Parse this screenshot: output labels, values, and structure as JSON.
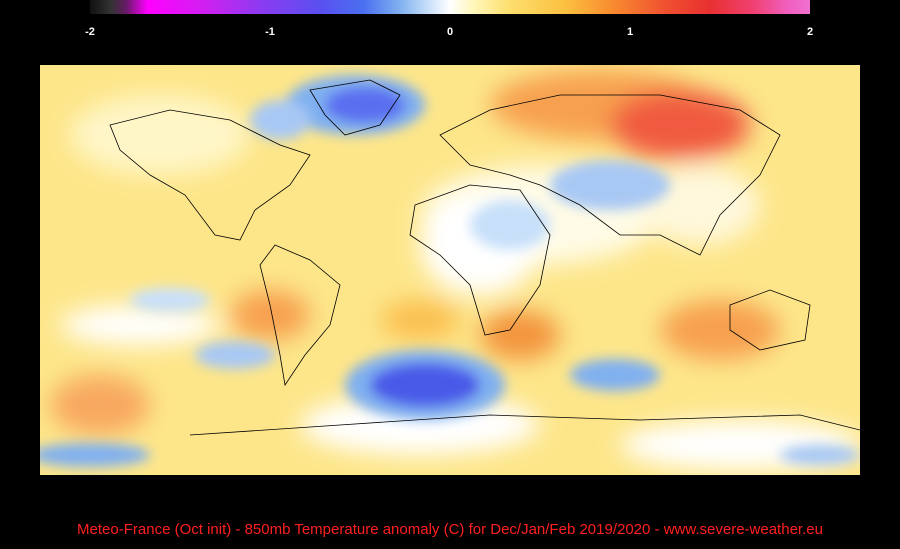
{
  "colorbar": {
    "lim": [
      -2,
      2
    ],
    "ticks": [
      -2,
      -1,
      0,
      1,
      2
    ]
  },
  "caption": "Meteo-France (Oct init) -  850mb Temperature anomaly (C)  for Dec/Jan/Feb 2019/2020  -  www.severe-weather.eu"
}
